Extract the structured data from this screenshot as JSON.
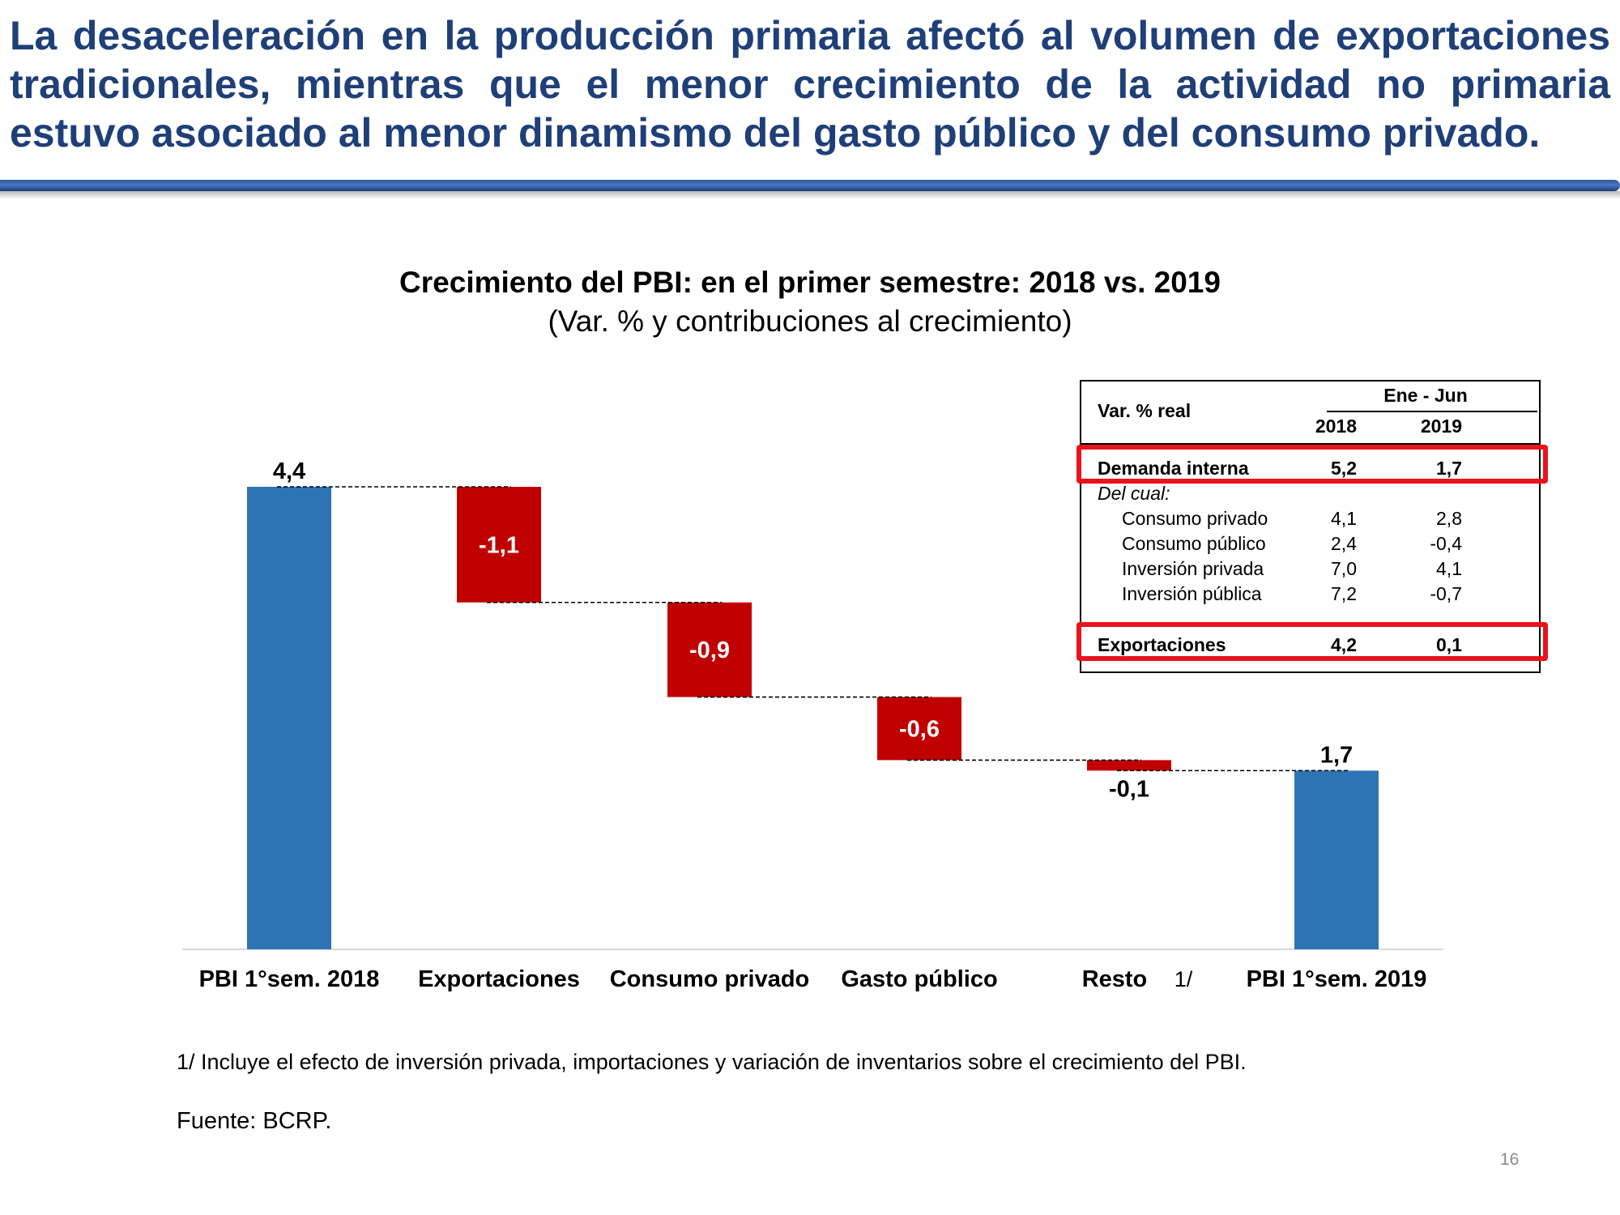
{
  "headline": "La desaceleración en la producción primaria afectó al volumen de exportaciones tradicionales, mientras que el menor crecimiento de la actividad no primaria estuvo asociado al menor dinamismo del gasto público y del consumo privado.",
  "chart_data": {
    "type": "waterfall",
    "title": "Crecimiento del PBI: en el primer semestre: 2018 vs. 2019",
    "subtitle": "(Var. % y contribuciones al crecimiento)",
    "ylim": [
      0,
      4.4
    ],
    "categories": [
      "PBI 1°sem. 2018",
      "Exportaciones",
      "Consumo privado",
      "Gasto público",
      "Resto",
      "PBI 1°sem. 2019"
    ],
    "category_note": "1/",
    "values": [
      4.4,
      -1.1,
      -0.9,
      -0.6,
      -0.1,
      1.7
    ],
    "value_labels": [
      "4,4",
      "-1,1",
      "-0,9",
      "-0,6",
      "-0,1",
      "1,7"
    ],
    "kinds": [
      "total",
      "delta",
      "delta",
      "delta",
      "delta",
      "total"
    ],
    "colors": {
      "total": "#2e74b5",
      "delta": "#c00000"
    }
  },
  "inset_table": {
    "header_label": "Var. % real",
    "period": "Ene - Jun",
    "years": [
      "2018",
      "2019"
    ],
    "rows": {
      "demanda": {
        "label": "Demanda interna",
        "v2018": "5,2",
        "v2019": "1,7"
      },
      "delcual": "Del cual:",
      "consumo_privado": {
        "label": "Consumo privado",
        "v2018": "4,1",
        "v2019": "2,8"
      },
      "consumo_publico": {
        "label": "Consumo público",
        "v2018": "2,4",
        "v2019": "-0,4"
      },
      "inversion_privada": {
        "label": "Inversión privada",
        "v2018": "7,0",
        "v2019": "4,1"
      },
      "inversion_publica": {
        "label": "Inversión pública",
        "v2018": "7,2",
        "v2019": "-0,7"
      },
      "exportaciones": {
        "label": "Exportaciones",
        "v2018": "4,2",
        "v2019": "0,1"
      }
    },
    "highlight_color": "#e8131b"
  },
  "footnote": "1/ Incluye el efecto de inversión privada, importaciones y variación de inventarios sobre el crecimiento del PBI.",
  "source": "Fuente: BCRP.",
  "page_number": "16"
}
